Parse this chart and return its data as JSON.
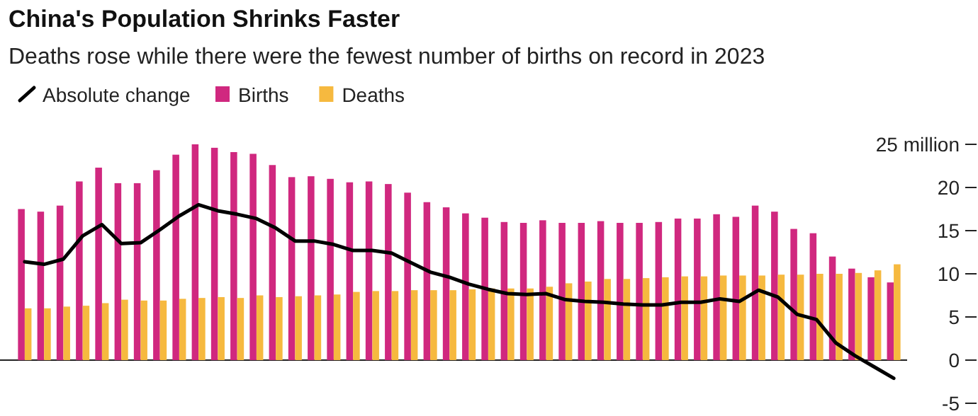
{
  "chart_data": {
    "type": "bar",
    "title": "China's Population Shrinks Faster",
    "subtitle": "Deaths rose while there were the fewest number of births on record in 2023",
    "categories": [
      null,
      null,
      null,
      null,
      null,
      null,
      null,
      null,
      null,
      null,
      null,
      null,
      null,
      null,
      null,
      null,
      null,
      null,
      null,
      null,
      null,
      null,
      null,
      null,
      null,
      null,
      null,
      null,
      null,
      null,
      null,
      null,
      null,
      null,
      null,
      null,
      null,
      null,
      null,
      null,
      null,
      null,
      null,
      null,
      null,
      null
    ],
    "series": [
      {
        "name": "Absolute change",
        "type": "line",
        "color": "#000000",
        "values": [
          11.4,
          11.1,
          11.7,
          14.4,
          15.7,
          13.5,
          13.6,
          15.1,
          16.7,
          18.0,
          17.3,
          16.9,
          16.4,
          15.3,
          13.8,
          13.8,
          13.4,
          12.7,
          12.7,
          12.4,
          11.3,
          10.2,
          9.6,
          8.8,
          8.2,
          7.7,
          7.6,
          7.7,
          7.0,
          6.8,
          6.7,
          6.5,
          6.4,
          6.4,
          6.7,
          6.7,
          7.1,
          6.8,
          8.1,
          7.3,
          5.3,
          4.7,
          2.0,
          0.5,
          -0.8,
          -2.1
        ]
      },
      {
        "name": "Births",
        "color": "#d0287f",
        "values": [
          17.5,
          17.2,
          17.9,
          20.7,
          22.3,
          20.5,
          20.5,
          22.0,
          23.8,
          25.0,
          24.6,
          24.1,
          23.9,
          22.6,
          21.2,
          21.3,
          21.0,
          20.6,
          20.7,
          20.4,
          19.4,
          18.3,
          17.7,
          17.0,
          16.5,
          16.0,
          15.9,
          16.2,
          15.9,
          15.9,
          16.1,
          15.9,
          15.9,
          16.0,
          16.4,
          16.4,
          16.9,
          16.6,
          17.9,
          17.2,
          15.2,
          14.7,
          12.0,
          10.6,
          9.6,
          9.0
        ]
      },
      {
        "name": "Deaths",
        "color": "#f6b93f",
        "values": [
          6.0,
          6.0,
          6.2,
          6.3,
          6.6,
          7.0,
          6.9,
          6.9,
          7.1,
          7.2,
          7.3,
          7.2,
          7.5,
          7.3,
          7.4,
          7.5,
          7.6,
          7.9,
          8.0,
          8.0,
          8.1,
          8.1,
          8.1,
          8.2,
          8.3,
          8.3,
          8.3,
          8.5,
          8.9,
          9.1,
          9.4,
          9.4,
          9.5,
          9.6,
          9.7,
          9.7,
          9.8,
          9.8,
          9.8,
          9.9,
          9.9,
          10.0,
          10.0,
          10.1,
          10.4,
          11.1
        ]
      }
    ],
    "ylim": [
      -5,
      25
    ],
    "yticks": [
      -5,
      0,
      5,
      10,
      15,
      20,
      {
        "value": 25,
        "label": "25 million"
      }
    ],
    "ref_lines": [
      {
        "axis": "y",
        "value": 0,
        "color": "#222222"
      }
    ],
    "legend": "top left",
    "grid": false
  }
}
